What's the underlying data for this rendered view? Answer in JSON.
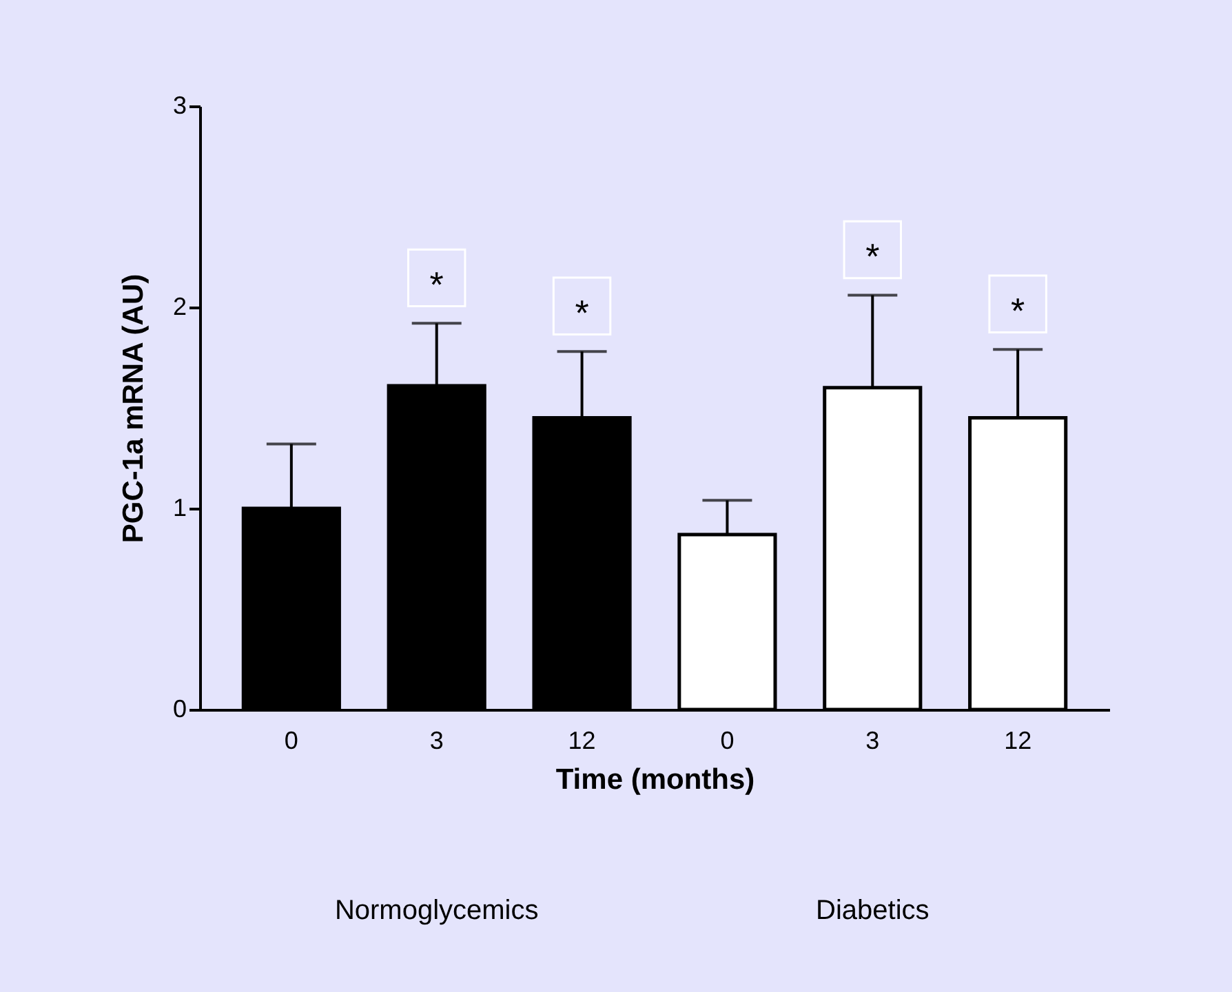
{
  "chart_data": {
    "type": "bar",
    "xlabel": "Time (months)",
    "ylabel": "PGC-1a mRNA (AU)",
    "categories": [
      "0",
      "3",
      "12",
      "0",
      "3",
      "12"
    ],
    "series": [
      {
        "color": "#000000",
        "values": [
          1.0,
          1.61,
          1.45,
          null,
          null,
          null
        ],
        "errors": [
          [
            1.0,
            1.32
          ],
          [
            1.61,
            1.92
          ],
          [
            1.45,
            1.78
          ],
          null,
          null,
          null
        ],
        "value_labels": [
          null,
          "*",
          "*",
          null,
          null,
          null
        ]
      },
      {
        "color": "#ffffff",
        "values": [
          null,
          null,
          null,
          0.87,
          1.6,
          1.45
        ],
        "errors": [
          null,
          null,
          null,
          [
            0.87,
            1.04
          ],
          [
            1.6,
            2.06
          ],
          [
            1.45,
            1.79
          ]
        ],
        "value_labels": [
          null,
          null,
          null,
          null,
          "*",
          "*"
        ]
      }
    ],
    "annotations": [
      "Normoglycemics",
      "Diabetics"
    ],
    "ylim": [
      0,
      3
    ],
    "yticks": [
      0,
      1,
      2,
      3
    ],
    "grid": false
  }
}
